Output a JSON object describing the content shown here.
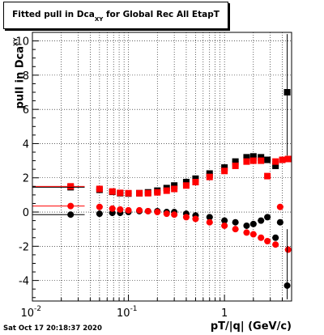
{
  "title": {
    "main": "Fitted pull in Dca",
    "sub": "XY",
    "rest": " for Global Rec All EtapT"
  },
  "ylabel": {
    "main": "pull in Dca",
    "sub": "XY"
  },
  "xlabel": "pT/|q| (GeV/c)",
  "datestamp": "Sat Oct 17 20:18:37 2020",
  "chart_data": {
    "type": "scatter",
    "title": "Fitted pull in Dca XY for Global Rec All EtapT",
    "xlabel": "pT/|q| (GeV/c)",
    "ylabel": "pull in Dca XY",
    "xscale": "log",
    "xlim": [
      0.01,
      5.0
    ],
    "ylim": [
      -5.2,
      10.5
    ],
    "xticks": [
      {
        "v": 0.01,
        "label": "10",
        "sup": "-2"
      },
      {
        "v": 0.1,
        "label": "10",
        "sup": "-1"
      },
      {
        "v": 1,
        "label": "1",
        "sup": ""
      }
    ],
    "yticks": [
      -4,
      -2,
      0,
      2,
      4,
      6,
      8,
      10
    ],
    "grid": true,
    "series": [
      {
        "color": "#000000",
        "marker": "square",
        "x": [
          0.025,
          0.05,
          0.068,
          0.082,
          0.1,
          0.13,
          0.16,
          0.2,
          0.25,
          0.3,
          0.4,
          0.5,
          0.7,
          1.0,
          1.3,
          1.7,
          2.0,
          2.4,
          2.8,
          3.4,
          4.5
        ],
        "y": [
          1.45,
          1.3,
          1.18,
          1.1,
          1.08,
          1.1,
          1.15,
          1.25,
          1.4,
          1.55,
          1.75,
          1.95,
          2.25,
          2.6,
          2.95,
          3.2,
          3.25,
          3.2,
          3.05,
          2.7,
          7.0
        ]
      },
      {
        "color": "#ff0000",
        "marker": "square",
        "x": [
          0.025,
          0.05,
          0.068,
          0.082,
          0.1,
          0.13,
          0.16,
          0.2,
          0.25,
          0.3,
          0.4,
          0.5,
          0.7,
          1.0,
          1.3,
          1.7,
          2.0,
          2.4,
          2.8,
          3.4,
          4.0,
          4.6
        ],
        "y": [
          1.5,
          1.35,
          1.2,
          1.12,
          1.1,
          1.1,
          1.1,
          1.15,
          1.25,
          1.35,
          1.55,
          1.75,
          2.05,
          2.4,
          2.7,
          2.95,
          3.0,
          3.0,
          2.1,
          2.95,
          3.05,
          3.1
        ]
      },
      {
        "color": "#000000",
        "marker": "circle",
        "x": [
          0.025,
          0.05,
          0.068,
          0.082,
          0.1,
          0.13,
          0.16,
          0.2,
          0.25,
          0.3,
          0.4,
          0.5,
          0.7,
          1.0,
          1.3,
          1.7,
          2.0,
          2.4,
          2.8,
          3.4,
          3.8,
          4.5
        ],
        "y": [
          -0.15,
          -0.1,
          -0.05,
          -0.05,
          0.0,
          0.05,
          0.05,
          0.05,
          0.0,
          0.0,
          -0.1,
          -0.2,
          -0.3,
          -0.5,
          -0.6,
          -0.8,
          -0.7,
          -0.5,
          -0.3,
          -1.5,
          -0.6,
          -4.3
        ]
      },
      {
        "color": "#ff0000",
        "marker": "circle",
        "x": [
          0.025,
          0.05,
          0.068,
          0.082,
          0.1,
          0.13,
          0.16,
          0.2,
          0.25,
          0.3,
          0.4,
          0.5,
          0.7,
          1.0,
          1.3,
          1.7,
          2.0,
          2.4,
          2.8,
          3.4,
          3.8,
          4.6
        ],
        "y": [
          0.35,
          0.3,
          0.2,
          0.15,
          0.1,
          0.1,
          0.05,
          0.0,
          -0.1,
          -0.15,
          -0.3,
          -0.4,
          -0.6,
          -0.8,
          -1.0,
          -1.2,
          -1.3,
          -1.5,
          -1.7,
          -1.9,
          0.3,
          -2.2
        ]
      }
    ]
  }
}
